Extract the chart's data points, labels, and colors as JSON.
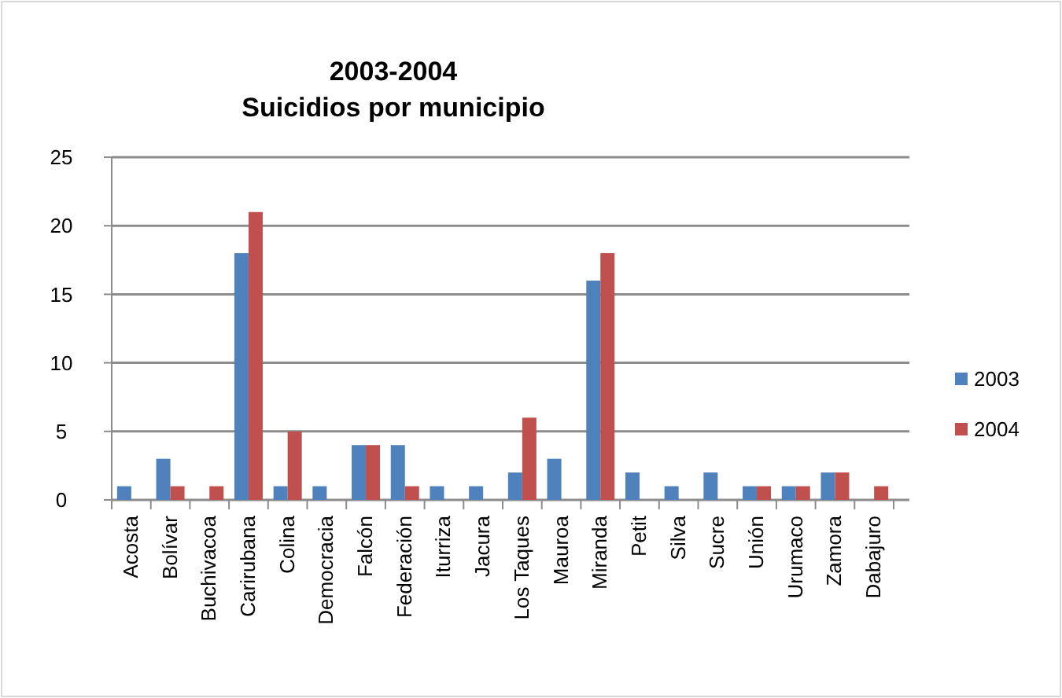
{
  "chart_data": {
    "type": "bar",
    "title": "2003-2004",
    "subtitle": "Suicidios por municipio",
    "categories": [
      "Acosta",
      "Bolívar",
      "Buchivacoa",
      "Carirubana",
      "Colina",
      "Democracia",
      "Falcón",
      "Federación",
      "Iturriza",
      "Jacura",
      "Los Taques",
      "Mauroa",
      "Miranda",
      "Petit",
      "Silva",
      "Sucre",
      "Unión",
      "Urumaco",
      "Zamora",
      "Dabajuro"
    ],
    "series": [
      {
        "name": "2003",
        "color": "#4f81bd",
        "values": [
          1,
          3,
          0,
          18,
          1,
          1,
          4,
          4,
          1,
          1,
          2,
          3,
          16,
          2,
          1,
          2,
          1,
          1,
          2,
          0
        ]
      },
      {
        "name": "2004",
        "color": "#c0504d",
        "values": [
          0,
          1,
          1,
          21,
          5,
          0,
          4,
          1,
          0,
          0,
          6,
          0,
          18,
          0,
          0,
          0,
          1,
          1,
          2,
          1
        ]
      }
    ],
    "ylim": [
      0,
      25
    ],
    "yticks": [
      0,
      5,
      10,
      15,
      20,
      25
    ],
    "grid": "y",
    "legend": "right"
  }
}
